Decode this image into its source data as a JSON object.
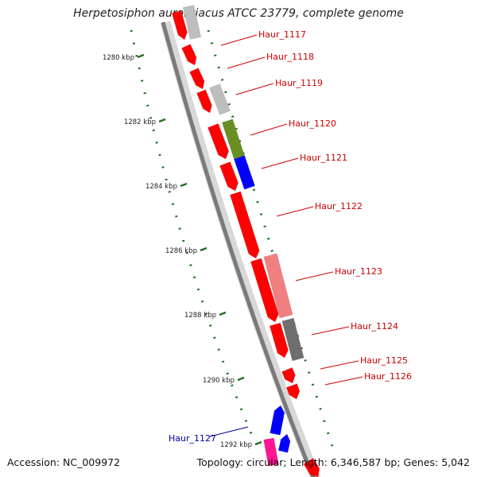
{
  "title": "Herpetosiphon aurantiacus ATCC 23779, complete genome",
  "accession": "Accession: NC_009972",
  "summary": "Topology: circular; Length: 6,346,587 bp; Genes: 5,042",
  "colors": {
    "backbone_dark": "#7a7a7a",
    "backbone_light": "#d8d8d8",
    "tick": "#207020",
    "label_red": "#cc0000",
    "label_blue": "#000099",
    "gene_red": "#ff0000",
    "gene_lightgray": "#bdbdbd",
    "gene_olive": "#6b8e23",
    "gene_blue": "#0000ff",
    "gene_pink": "#f08080",
    "gene_darkgray": "#6e6e6e",
    "gene_magenta": "#ff1493"
  },
  "scale_ticks": [
    "1280 kbp",
    "1282 kbp",
    "1284 kbp",
    "1286 kbp",
    "1288 kbp",
    "1290 kbp",
    "1292 kbp"
  ],
  "gene_labels": [
    "Haur_1117",
    "Haur_1118",
    "Haur_1119",
    "Haur_1120",
    "Haur_1121",
    "Haur_1122",
    "Haur_1123",
    "Haur_1124",
    "Haur_1125",
    "Haur_1126",
    "Haur_1127"
  ]
}
